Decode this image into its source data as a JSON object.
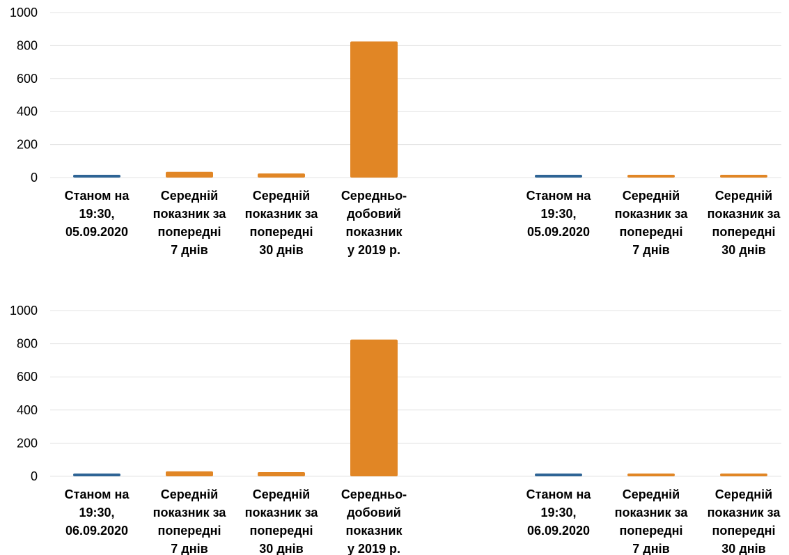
{
  "colors": {
    "current": "#2e6495",
    "average": "#e18625",
    "grid": "#e3e3e3",
    "text": "#000000"
  },
  "chart_data": [
    {
      "type": "bar",
      "panel": "top",
      "ylim": [
        0,
        1000
      ],
      "yticks": [
        0,
        200,
        400,
        600,
        800,
        1000
      ],
      "grid": true,
      "legend": "none",
      "groups": [
        {
          "categories": [
            [
              "Станом на",
              "19:30,",
              "05.09.2020"
            ],
            [
              "Середній",
              "показник за",
              "попередні",
              "7 днів"
            ],
            [
              "Середній",
              "показник за",
              "попередні",
              "30 днів"
            ],
            [
              "Середньо-",
              "добовий",
              "показник",
              "у 2019 р."
            ]
          ],
          "values": [
            5,
            35,
            25,
            825
          ],
          "series_colors": [
            "current",
            "average",
            "average",
            "average"
          ]
        },
        {
          "categories": [
            [
              "Станом на",
              "19:30,",
              "05.09.2020"
            ],
            [
              "Середній",
              "показник за",
              "попередні",
              "7 днів"
            ],
            [
              "Середній",
              "показник за",
              "попередні",
              "30 днів"
            ]
          ],
          "values": [
            5,
            5,
            5
          ],
          "series_colors": [
            "current",
            "average",
            "average"
          ]
        }
      ]
    },
    {
      "type": "bar",
      "panel": "bottom",
      "ylim": [
        0,
        1000
      ],
      "yticks": [
        0,
        200,
        400,
        600,
        800,
        1000
      ],
      "grid": true,
      "legend": "none",
      "groups": [
        {
          "categories": [
            [
              "Станом на",
              "19:30,",
              "06.09.2020"
            ],
            [
              "Середній",
              "показник за",
              "попередні",
              "7 днів"
            ],
            [
              "Середній",
              "показник за",
              "попередні",
              "30 днів"
            ],
            [
              "Середньо-",
              "добовий",
              "показник",
              "у 2019 р."
            ]
          ],
          "values": [
            5,
            30,
            25,
            825
          ],
          "series_colors": [
            "current",
            "average",
            "average",
            "average"
          ]
        },
        {
          "categories": [
            [
              "Станом на",
              "19:30,",
              "06.09.2020"
            ],
            [
              "Середній",
              "показник за",
              "попередні",
              "7 днів"
            ],
            [
              "Середній",
              "показник за",
              "попередні",
              "30 днів"
            ]
          ],
          "values": [
            5,
            5,
            5
          ],
          "series_colors": [
            "current",
            "average",
            "average"
          ]
        }
      ]
    }
  ]
}
